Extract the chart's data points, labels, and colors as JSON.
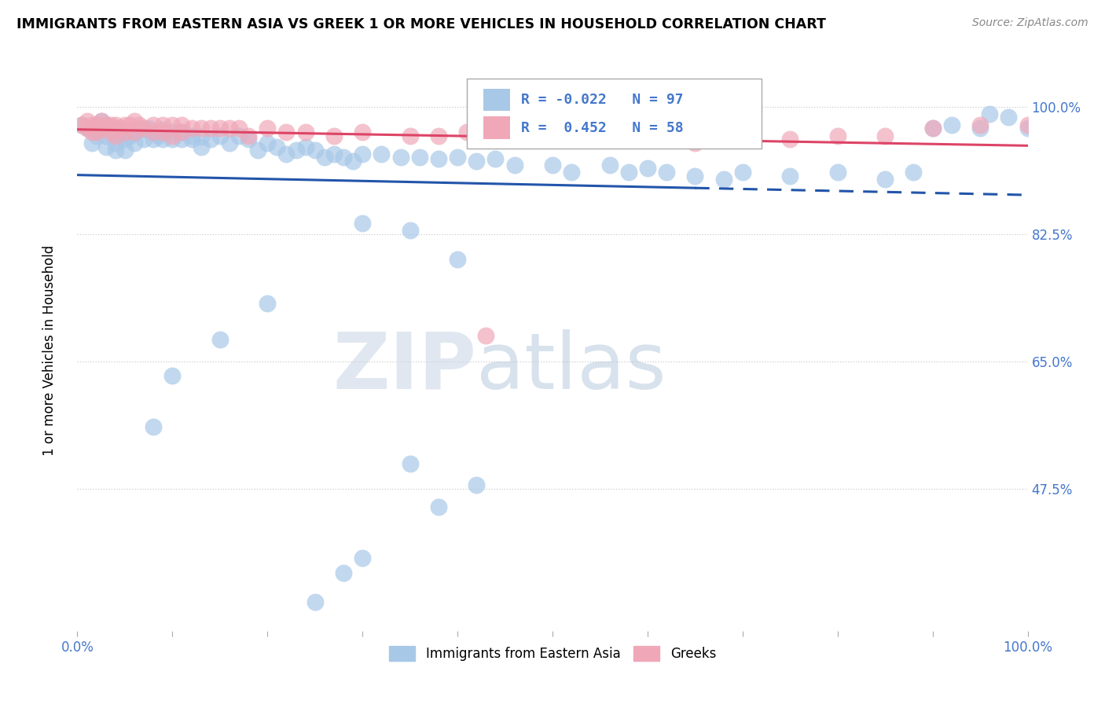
{
  "title": "IMMIGRANTS FROM EASTERN ASIA VS GREEK 1 OR MORE VEHICLES IN HOUSEHOLD CORRELATION CHART",
  "source": "Source: ZipAtlas.com",
  "ylabel": "1 or more Vehicles in Household",
  "R_blue": -0.022,
  "N_blue": 97,
  "R_pink": 0.452,
  "N_pink": 58,
  "blue_color": "#a8c8e8",
  "pink_color": "#f0a8b8",
  "blue_line_color": "#2255aa",
  "pink_line_color": "#dd4466",
  "legend_label_blue": "Immigrants from Eastern Asia",
  "legend_label_pink": "Greeks",
  "ytick_labels": [
    "100.0%",
    "82.5%",
    "65.0%",
    "47.5%"
  ],
  "ytick_values": [
    1.0,
    0.825,
    0.65,
    0.475
  ],
  "xlim": [
    0.0,
    1.0
  ],
  "ylim": [
    0.28,
    1.05
  ],
  "blue_x": [
    0.005,
    0.01,
    0.015,
    0.015,
    0.02,
    0.02,
    0.025,
    0.025,
    0.03,
    0.03,
    0.03,
    0.035,
    0.04,
    0.04,
    0.04,
    0.04,
    0.045,
    0.05,
    0.05,
    0.05,
    0.055,
    0.06,
    0.06,
    0.065,
    0.07,
    0.07,
    0.075,
    0.08,
    0.08,
    0.085,
    0.09,
    0.09,
    0.1,
    0.1,
    0.11,
    0.11,
    0.12,
    0.12,
    0.13,
    0.13,
    0.14,
    0.15,
    0.16,
    0.17,
    0.18,
    0.19,
    0.2,
    0.21,
    0.22,
    0.23,
    0.24,
    0.25,
    0.26,
    0.27,
    0.28,
    0.29,
    0.3,
    0.32,
    0.34,
    0.36,
    0.38,
    0.4,
    0.42,
    0.44,
    0.46,
    0.5,
    0.52,
    0.56,
    0.58,
    0.6,
    0.62,
    0.65,
    0.68,
    0.7,
    0.75,
    0.8,
    0.85,
    0.88,
    0.9,
    0.92,
    0.95,
    0.96,
    0.98,
    1.0,
    0.3,
    0.35,
    0.4,
    0.2,
    0.15,
    0.1,
    0.08,
    0.42,
    0.38,
    0.35,
    0.3,
    0.28,
    0.25
  ],
  "blue_y": [
    0.975,
    0.97,
    0.97,
    0.95,
    0.965,
    0.96,
    0.98,
    0.97,
    0.975,
    0.96,
    0.945,
    0.965,
    0.97,
    0.96,
    0.95,
    0.94,
    0.97,
    0.965,
    0.955,
    0.94,
    0.96,
    0.965,
    0.95,
    0.97,
    0.968,
    0.955,
    0.97,
    0.965,
    0.955,
    0.96,
    0.968,
    0.955,
    0.965,
    0.955,
    0.965,
    0.955,
    0.96,
    0.955,
    0.958,
    0.945,
    0.955,
    0.96,
    0.95,
    0.96,
    0.955,
    0.94,
    0.95,
    0.945,
    0.935,
    0.94,
    0.945,
    0.94,
    0.93,
    0.935,
    0.93,
    0.925,
    0.935,
    0.935,
    0.93,
    0.93,
    0.928,
    0.93,
    0.925,
    0.928,
    0.92,
    0.92,
    0.91,
    0.92,
    0.91,
    0.915,
    0.91,
    0.905,
    0.9,
    0.91,
    0.905,
    0.91,
    0.9,
    0.91,
    0.97,
    0.975,
    0.97,
    0.99,
    0.985,
    0.97,
    0.84,
    0.83,
    0.79,
    0.73,
    0.68,
    0.63,
    0.56,
    0.48,
    0.45,
    0.51,
    0.38,
    0.36,
    0.32
  ],
  "pink_x": [
    0.005,
    0.01,
    0.01,
    0.015,
    0.015,
    0.02,
    0.02,
    0.025,
    0.025,
    0.03,
    0.035,
    0.035,
    0.04,
    0.04,
    0.045,
    0.05,
    0.05,
    0.055,
    0.06,
    0.06,
    0.065,
    0.07,
    0.08,
    0.08,
    0.09,
    0.09,
    0.1,
    0.1,
    0.11,
    0.11,
    0.12,
    0.13,
    0.14,
    0.15,
    0.16,
    0.17,
    0.18,
    0.2,
    0.22,
    0.24,
    0.27,
    0.3,
    0.35,
    0.38,
    0.41,
    0.43,
    0.46,
    0.5,
    0.55,
    0.6,
    0.65,
    0.7,
    0.75,
    0.8,
    0.85,
    0.9,
    0.95,
    1.0
  ],
  "pink_y": [
    0.975,
    0.98,
    0.97,
    0.975,
    0.965,
    0.975,
    0.965,
    0.98,
    0.97,
    0.975,
    0.975,
    0.965,
    0.975,
    0.96,
    0.97,
    0.975,
    0.965,
    0.975,
    0.98,
    0.965,
    0.975,
    0.97,
    0.975,
    0.965,
    0.975,
    0.965,
    0.975,
    0.96,
    0.975,
    0.965,
    0.97,
    0.97,
    0.97,
    0.97,
    0.97,
    0.97,
    0.96,
    0.97,
    0.965,
    0.965,
    0.96,
    0.965,
    0.96,
    0.96,
    0.965,
    0.685,
    0.96,
    0.965,
    0.96,
    0.96,
    0.95,
    0.96,
    0.955,
    0.96,
    0.96,
    0.97,
    0.975,
    0.975
  ]
}
